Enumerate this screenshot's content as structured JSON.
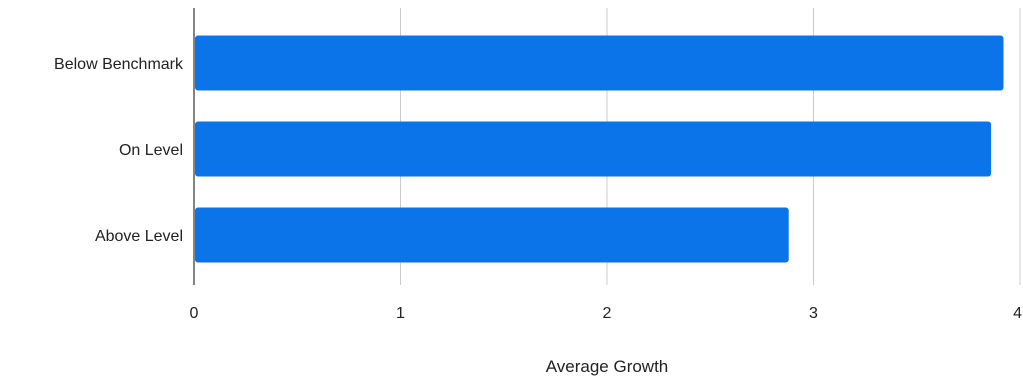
{
  "chart_data": {
    "type": "bar",
    "orientation": "horizontal",
    "categories": [
      "Below Benchmark",
      "On Level",
      "Above Level"
    ],
    "series": [
      {
        "values": [
          3.92,
          3.86,
          2.88
        ],
        "color": "#0b74e8"
      }
    ],
    "title": "",
    "xlabel": "Average Growth",
    "ylabel": "",
    "xlim": [
      0,
      4
    ],
    "xticks": [
      "0",
      "1",
      "2",
      "3",
      "4"
    ],
    "grid": true,
    "legend": "none"
  }
}
